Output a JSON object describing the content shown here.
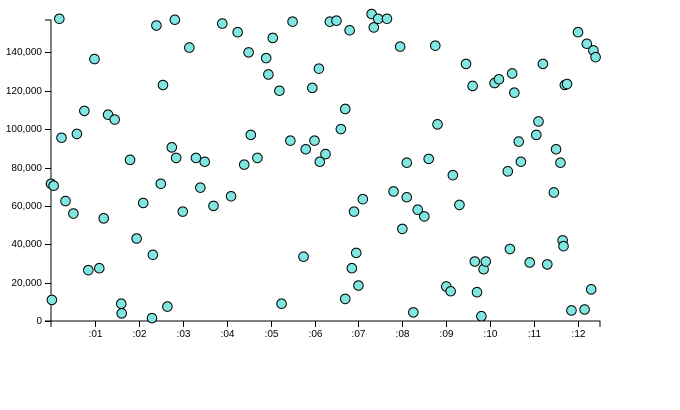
{
  "chart_data": {
    "type": "scatter",
    "x_unit": "seconds",
    "xlim": [
      0,
      12.5
    ],
    "ylim": [
      0,
      160000
    ],
    "x_ticks": [
      1,
      2,
      3,
      4,
      5,
      6,
      7,
      8,
      9,
      10,
      11,
      12
    ],
    "x_tick_labels": [
      ":01",
      ":02",
      ":03",
      ":04",
      ":05",
      ":06",
      ":07",
      ":08",
      ":09",
      ":10",
      ":11",
      ":12"
    ],
    "y_ticks": [
      0,
      20000,
      40000,
      60000,
      80000,
      100000,
      120000,
      140000
    ],
    "y_tick_labels": [
      "0",
      "20,000",
      "40,000",
      "60,000",
      "80,000",
      "100,000",
      "120,000",
      "140,000"
    ],
    "grid": false,
    "point_color": "#7fe6e1",
    "point_stroke": "#000000",
    "points": [
      [
        0.0,
        71500
      ],
      [
        0.06,
        70500
      ],
      [
        0.02,
        11000
      ],
      [
        0.19,
        157500
      ],
      [
        0.24,
        95500
      ],
      [
        0.33,
        62500
      ],
      [
        0.51,
        56000
      ],
      [
        0.59,
        97500
      ],
      [
        0.76,
        109500
      ],
      [
        0.85,
        26500
      ],
      [
        0.99,
        136500
      ],
      [
        1.1,
        27500
      ],
      [
        1.2,
        53500
      ],
      [
        1.3,
        107500
      ],
      [
        1.45,
        105000
      ],
      [
        1.6,
        9000
      ],
      [
        1.61,
        4000
      ],
      [
        1.8,
        84000
      ],
      [
        1.95,
        43000
      ],
      [
        2.1,
        61500
      ],
      [
        2.3,
        1500
      ],
      [
        2.32,
        34500
      ],
      [
        2.4,
        154000
      ],
      [
        2.55,
        123000
      ],
      [
        2.5,
        71500
      ],
      [
        2.65,
        7500
      ],
      [
        2.75,
        90500
      ],
      [
        2.82,
        157000
      ],
      [
        2.85,
        85000
      ],
      [
        3.0,
        57000
      ],
      [
        3.15,
        142500
      ],
      [
        3.3,
        85000
      ],
      [
        3.4,
        69500
      ],
      [
        3.5,
        83000
      ],
      [
        3.7,
        60000
      ],
      [
        3.9,
        155000
      ],
      [
        4.1,
        65000
      ],
      [
        4.25,
        150500
      ],
      [
        4.4,
        81500
      ],
      [
        4.5,
        140000
      ],
      [
        4.55,
        97000
      ],
      [
        4.7,
        85000
      ],
      [
        4.9,
        137000
      ],
      [
        4.95,
        128500
      ],
      [
        5.05,
        147500
      ],
      [
        5.2,
        120000
      ],
      [
        5.25,
        9000
      ],
      [
        5.45,
        94000
      ],
      [
        5.5,
        156000
      ],
      [
        5.75,
        33500
      ],
      [
        5.8,
        89500
      ],
      [
        5.95,
        121500
      ],
      [
        6.0,
        94000
      ],
      [
        6.1,
        131500
      ],
      [
        6.12,
        83000
      ],
      [
        6.25,
        87000
      ],
      [
        6.35,
        156000
      ],
      [
        6.5,
        156500
      ],
      [
        6.6,
        100000
      ],
      [
        6.7,
        11500
      ],
      [
        6.7,
        110500
      ],
      [
        6.8,
        151500
      ],
      [
        6.85,
        27500
      ],
      [
        6.9,
        57000
      ],
      [
        6.95,
        35500
      ],
      [
        7.0,
        18500
      ],
      [
        7.1,
        63500
      ],
      [
        7.3,
        160000
      ],
      [
        7.35,
        153000
      ],
      [
        7.45,
        157500
      ],
      [
        7.65,
        157500
      ],
      [
        7.8,
        67500
      ],
      [
        7.95,
        143000
      ],
      [
        8.0,
        48000
      ],
      [
        8.1,
        82500
      ],
      [
        8.1,
        64500
      ],
      [
        8.25,
        4500
      ],
      [
        8.35,
        58000
      ],
      [
        8.5,
        54500
      ],
      [
        8.6,
        84500
      ],
      [
        8.75,
        143500
      ],
      [
        8.8,
        102500
      ],
      [
        9.0,
        18000
      ],
      [
        9.1,
        15500
      ],
      [
        9.15,
        76000
      ],
      [
        9.3,
        60500
      ],
      [
        9.45,
        134000
      ],
      [
        9.6,
        122500
      ],
      [
        9.65,
        31000
      ],
      [
        9.7,
        15000
      ],
      [
        9.8,
        2500
      ],
      [
        9.85,
        27000
      ],
      [
        9.9,
        31000
      ],
      [
        10.1,
        124000
      ],
      [
        10.2,
        126000
      ],
      [
        10.4,
        78000
      ],
      [
        10.45,
        37500
      ],
      [
        10.5,
        129000
      ],
      [
        10.55,
        119000
      ],
      [
        10.65,
        93500
      ],
      [
        10.7,
        83000
      ],
      [
        10.9,
        30500
      ],
      [
        11.05,
        97000
      ],
      [
        11.1,
        104000
      ],
      [
        11.2,
        134000
      ],
      [
        11.3,
        29500
      ],
      [
        11.45,
        67000
      ],
      [
        11.5,
        89500
      ],
      [
        11.6,
        82500
      ],
      [
        11.65,
        42000
      ],
      [
        11.67,
        39000
      ],
      [
        11.7,
        123000
      ],
      [
        11.75,
        123500
      ],
      [
        11.85,
        5500
      ],
      [
        12.0,
        150500
      ],
      [
        12.15,
        6000
      ],
      [
        12.2,
        144500
      ],
      [
        12.3,
        16500
      ],
      [
        12.35,
        141000
      ],
      [
        12.4,
        137500
      ]
    ]
  }
}
